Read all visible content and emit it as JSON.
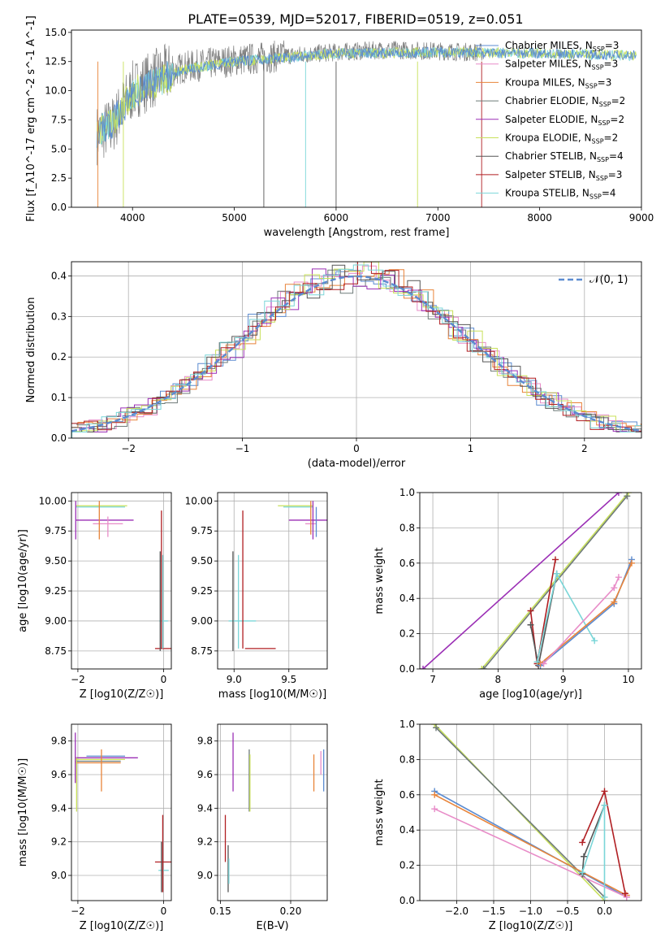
{
  "figure_title": "PLATE=0539, MJD=52017, FIBERID=0519, z=0.051",
  "palette": {
    "chabrier_miles": "#5b8bd0",
    "salpeter_miles": "#e88cc8",
    "kroupa_miles": "#e8843a",
    "chabrier_elodie": "#6e7a78",
    "salpeter_elodie": "#9b2fb5",
    "kroupa_elodie": "#c8e05a",
    "chabrier_stelib": "#555555",
    "salpeter_stelib": "#b01e22",
    "kroupa_stelib": "#7ad6d8",
    "gaussian": "#5b8bd0",
    "grid": "#b0b0b0"
  },
  "chart_data": [
    {
      "id": "spectrum",
      "type": "line",
      "title": "PLATE=0539, MJD=52017, FIBERID=0519, z=0.051",
      "xlabel": "wavelength [Angstrom, rest frame]",
      "ylabel": "Flux [f_λ10^-17 erg cm^-2 s^-1 A^-1]",
      "xlim": [
        3400,
        9000
      ],
      "ylim": [
        0,
        15.2
      ],
      "xticks": [
        "4000",
        "5000",
        "6000",
        "7000",
        "8000",
        "9000"
      ],
      "yticks": [
        "0.0",
        "2.5",
        "5.0",
        "7.5",
        "10.0",
        "12.5",
        "15.0"
      ],
      "grid": false,
      "legend_position": "right",
      "legend": [
        "Chabrier MILES, N_SSP=3",
        "Salpeter MILES, N_SSP=3",
        "Kroupa MILES, N_SSP=3",
        "Chabrier ELODIE, N_SSP=2",
        "Salpeter ELODIE, N_SSP=2",
        "Kroupa ELODIE, N_SSP=2",
        "Chabrier STELIB, N_SSP=4",
        "Salpeter STELIB, N_SSP=3",
        "Kroupa STELIB, N_SSP=4"
      ],
      "observed_trend": {
        "x": [
          3650,
          3800,
          3900,
          4000,
          4200,
          4500,
          5000,
          5500,
          6000,
          6500,
          7000,
          7400
        ],
        "y": [
          6.2,
          7.0,
          8.5,
          10.0,
          11.0,
          12.0,
          12.6,
          13.0,
          13.3,
          13.5,
          13.4,
          13.3
        ]
      },
      "model_trend": {
        "x": [
          3650,
          3800,
          4000,
          4500,
          5000,
          6000,
          7000,
          8000,
          9000
        ],
        "y": [
          6.5,
          7.2,
          9.8,
          11.8,
          12.5,
          13.2,
          13.3,
          13.2,
          13.0
        ]
      }
    },
    {
      "id": "residuals",
      "type": "line",
      "xlabel": "(data-model)/error",
      "ylabel": "Normed distribution",
      "xlim": [
        -2.5,
        2.5
      ],
      "ylim": [
        0,
        0.435
      ],
      "xticks": [
        "−2",
        "−1",
        "0",
        "1",
        "2"
      ],
      "yticks": [
        "0.0",
        "0.1",
        "0.2",
        "0.3",
        "0.4"
      ],
      "grid": true,
      "legend_position": "top-right",
      "legend": [
        "𝒩(0, 1)"
      ]
    },
    {
      "id": "age_vs_Z",
      "type": "scatter",
      "xlabel": "Z [log10(Z/Z☉)]",
      "ylabel": "age  [log10(age/yr)]",
      "xlim": [
        -2.15,
        0.18
      ],
      "ylim": [
        8.6,
        10.07
      ],
      "xticks": [
        "−2",
        "0"
      ],
      "yticks": [
        "8.75",
        "9.00",
        "9.25",
        "9.50",
        "9.75",
        "10.00"
      ],
      "grid": true,
      "bars": [
        {
          "x": [
            -2.05,
            -0.85
          ],
          "y": 9.96,
          "color": "kroupa_elodie"
        },
        {
          "x": [
            -2.05,
            -0.9
          ],
          "y": 9.95,
          "color": "kroupa_stelib"
        },
        {
          "x": [
            -2.05,
            -0.7
          ],
          "y": 9.84,
          "color": "salpeter_elodie"
        },
        {
          "x": [
            -1.65,
            -0.95
          ],
          "y": 9.81,
          "color": "salpeter_miles"
        },
        {
          "x": [
            -0.2,
            0.2
          ],
          "y": 8.77,
          "color": "salpeter_stelib"
        },
        {
          "x": [
            -0.1,
            0.1
          ],
          "y": 9.0,
          "color": "kroupa_stelib"
        }
      ],
      "vbars": [
        {
          "x": -2.05,
          "y": [
            9.68,
            10.0
          ],
          "color": "salpeter_elodie"
        },
        {
          "x": -1.5,
          "y": [
            9.68,
            10.0
          ],
          "color": "kroupa_miles"
        },
        {
          "x": -1.3,
          "y": [
            9.7,
            9.87
          ],
          "color": "salpeter_miles"
        },
        {
          "x": -0.05,
          "y": [
            8.77,
            9.92
          ],
          "color": "salpeter_stelib"
        },
        {
          "x": -0.08,
          "y": [
            8.75,
            9.58
          ],
          "color": "chabrier_stelib"
        },
        {
          "x": -0.02,
          "y": [
            8.77,
            9.55
          ],
          "color": "kroupa_stelib"
        }
      ]
    },
    {
      "id": "age_vs_mass",
      "type": "scatter",
      "xlabel": "mass [log10(M/M☉)]",
      "ylabel": "",
      "xlim": [
        8.85,
        9.85
      ],
      "ylim": [
        8.6,
        10.07
      ],
      "xticks": [
        "9.0",
        "9.5"
      ],
      "yticks": [
        "8.75",
        "9.00",
        "9.25",
        "9.50",
        "9.75",
        "10.00"
      ],
      "grid": true,
      "bars": [
        {
          "x": [
            9.4,
            9.72
          ],
          "y": 9.96,
          "color": "kroupa_elodie"
        },
        {
          "x": [
            9.45,
            9.72
          ],
          "y": 9.95,
          "color": "kroupa_stelib"
        },
        {
          "x": [
            9.5,
            9.85
          ],
          "y": 9.84,
          "color": "salpeter_elodie"
        },
        {
          "x": [
            9.65,
            9.75
          ],
          "y": 9.81,
          "color": "salpeter_miles"
        },
        {
          "x": [
            9.1,
            9.38
          ],
          "y": 8.77,
          "color": "salpeter_stelib"
        },
        {
          "x": [
            8.95,
            9.2
          ],
          "y": 9.0,
          "color": "kroupa_stelib"
        }
      ],
      "vbars": [
        {
          "x": 9.72,
          "y": [
            9.68,
            10.0
          ],
          "color": "salpeter_elodie"
        },
        {
          "x": 9.7,
          "y": [
            9.72,
            10.0
          ],
          "color": "kroupa_miles"
        },
        {
          "x": 9.75,
          "y": [
            9.7,
            9.95
          ],
          "color": "chabrier_miles"
        },
        {
          "x": 9.08,
          "y": [
            8.77,
            9.92
          ],
          "color": "salpeter_stelib"
        },
        {
          "x": 8.99,
          "y": [
            8.75,
            9.58
          ],
          "color": "chabrier_stelib"
        },
        {
          "x": 9.04,
          "y": [
            8.77,
            9.55
          ],
          "color": "kroupa_stelib"
        }
      ]
    },
    {
      "id": "mass_weight_vs_age",
      "type": "line",
      "xlabel": "age  [log10(age/yr)]",
      "ylabel": "mass weight",
      "xlim": [
        6.8,
        10.2
      ],
      "ylim": [
        0,
        1
      ],
      "xticks": [
        "7",
        "8",
        "9",
        "10"
      ],
      "yticks": [
        "0.0",
        "0.2",
        "0.4",
        "0.6",
        "0.8",
        "1.0"
      ],
      "grid": true,
      "series": [
        {
          "color": "salpeter_elodie",
          "x": [
            6.85,
            9.85
          ],
          "y": [
            0.0,
            1.0
          ]
        },
        {
          "color": "kroupa_elodie",
          "x": [
            7.75,
            10.0
          ],
          "y": [
            0.0,
            1.0
          ]
        },
        {
          "color": "chabrier_elodie",
          "x": [
            7.78,
            9.98
          ],
          "y": [
            0.0,
            0.98
          ]
        },
        {
          "color": "salpeter_stelib",
          "x": [
            8.5,
            8.6,
            8.88
          ],
          "y": [
            0.33,
            0.03,
            0.62
          ]
        },
        {
          "color": "chabrier_stelib",
          "x": [
            8.5,
            8.62,
            8.9
          ],
          "y": [
            0.25,
            0.02,
            0.54
          ]
        },
        {
          "color": "kroupa_stelib",
          "x": [
            8.6,
            8.9,
            9.48
          ],
          "y": [
            0.04,
            0.54,
            0.16
          ]
        },
        {
          "color": "chabrier_miles",
          "x": [
            8.65,
            9.78,
            10.05
          ],
          "y": [
            0.02,
            0.37,
            0.62
          ]
        },
        {
          "color": "kroupa_miles",
          "x": [
            8.65,
            9.78,
            10.05
          ],
          "y": [
            0.03,
            0.38,
            0.6
          ]
        },
        {
          "color": "salpeter_miles",
          "x": [
            8.7,
            9.78,
            9.85
          ],
          "y": [
            0.03,
            0.46,
            0.52
          ]
        }
      ]
    },
    {
      "id": "mass_vs_Z",
      "type": "scatter",
      "xlabel": "Z [log10(Z/Z☉)]",
      "ylabel": "mass [log10(M/M☉)]",
      "xlim": [
        -2.15,
        0.18
      ],
      "ylim": [
        8.85,
        9.9
      ],
      "xticks": [
        "−2",
        "0"
      ],
      "yticks": [
        "9.0",
        "9.2",
        "9.4",
        "9.6",
        "9.8"
      ],
      "grid": true,
      "bars": [
        {
          "x": [
            -2.05,
            -0.6
          ],
          "y": 9.7,
          "color": "salpeter_elodie"
        },
        {
          "x": [
            -2.05,
            -0.9
          ],
          "y": 9.69,
          "color": "kroupa_elodie"
        },
        {
          "x": [
            -2.05,
            -1.0
          ],
          "y": 9.68,
          "color": "chabrier_elodie"
        },
        {
          "x": [
            -2.05,
            -1.0
          ],
          "y": 9.67,
          "color": "kroupa_miles"
        },
        {
          "x": [
            -1.8,
            -0.9
          ],
          "y": 9.71,
          "color": "chabrier_miles"
        },
        {
          "x": [
            -0.2,
            0.2
          ],
          "y": 9.08,
          "color": "salpeter_stelib"
        },
        {
          "x": [
            -0.12,
            0.12
          ],
          "y": 9.03,
          "color": "kroupa_stelib"
        }
      ],
      "vbars": [
        {
          "x": -2.06,
          "y": [
            9.55,
            9.85
          ],
          "color": "salpeter_elodie"
        },
        {
          "x": -2.03,
          "y": [
            9.38,
            9.7
          ],
          "color": "kroupa_elodie"
        },
        {
          "x": -1.45,
          "y": [
            9.5,
            9.75
          ],
          "color": "kroupa_miles"
        },
        {
          "x": -0.05,
          "y": [
            8.9,
            9.2
          ],
          "color": "chabrier_stelib"
        },
        {
          "x": -0.02,
          "y": [
            8.9,
            9.36
          ],
          "color": "salpeter_stelib"
        }
      ]
    },
    {
      "id": "mass_vs_ebv",
      "type": "scatter",
      "xlabel": "E(B-V)",
      "ylabel": "",
      "xlim": [
        0.148,
        0.226
      ],
      "ylim": [
        8.85,
        9.9
      ],
      "xticks": [
        "0.15",
        "0.20"
      ],
      "yticks": [
        "9.0",
        "9.2",
        "9.4",
        "9.6",
        "9.8"
      ],
      "grid": true,
      "vbars": [
        {
          "x": 0.1535,
          "y": [
            9.08,
            9.36
          ],
          "color": "salpeter_stelib"
        },
        {
          "x": 0.1555,
          "y": [
            8.9,
            9.18
          ],
          "color": "chabrier_stelib"
        },
        {
          "x": 0.156,
          "y": [
            8.95,
            9.1
          ],
          "color": "kroupa_stelib"
        },
        {
          "x": 0.159,
          "y": [
            9.5,
            9.85
          ],
          "color": "salpeter_elodie"
        },
        {
          "x": 0.1705,
          "y": [
            9.38,
            9.75
          ],
          "color": "chabrier_elodie"
        },
        {
          "x": 0.171,
          "y": [
            9.38,
            9.72
          ],
          "color": "kroupa_elodie"
        },
        {
          "x": 0.2165,
          "y": [
            9.5,
            9.72
          ],
          "color": "kroupa_miles"
        },
        {
          "x": 0.2215,
          "y": [
            9.6,
            9.74
          ],
          "color": "salpeter_miles"
        },
        {
          "x": 0.2235,
          "y": [
            9.5,
            9.75
          ],
          "color": "chabrier_miles"
        }
      ]
    },
    {
      "id": "mass_weight_vs_Z",
      "type": "line",
      "xlabel": "Z [log10(Z/Z☉)]",
      "ylabel": "mass weight",
      "xlim": [
        -2.5,
        0.5
      ],
      "ylim": [
        0,
        1
      ],
      "xticks": [
        "−2.0",
        "−1.5",
        "−1.0",
        "−0.5",
        "0.0"
      ],
      "yticks": [
        "0.0",
        "0.2",
        "0.4",
        "0.6",
        "0.8",
        "1.0"
      ],
      "grid": true,
      "series": [
        {
          "color": "kroupa_elodie",
          "x": [
            -2.3,
            0.0
          ],
          "y": [
            1.0,
            0.0
          ]
        },
        {
          "color": "chabrier_elodie",
          "x": [
            -2.28,
            0.0
          ],
          "y": [
            0.98,
            0.02
          ]
        },
        {
          "color": "chabrier_miles",
          "x": [
            -2.3,
            0.3
          ],
          "y": [
            0.62,
            0.02
          ]
        },
        {
          "color": "kroupa_miles",
          "x": [
            -2.3,
            0.3
          ],
          "y": [
            0.6,
            0.03
          ]
        },
        {
          "color": "salpeter_miles",
          "x": [
            -2.3,
            0.3
          ],
          "y": [
            0.52,
            0.02
          ]
        },
        {
          "color": "salpeter_stelib",
          "x": [
            -0.3,
            0.0,
            0.28
          ],
          "y": [
            0.33,
            0.62,
            0.04
          ]
        },
        {
          "color": "chabrier_stelib",
          "x": [
            -0.3,
            -0.28,
            0.0
          ],
          "y": [
            0.15,
            0.25,
            0.54
          ]
        },
        {
          "color": "kroupa_stelib",
          "x": [
            -0.3,
            0.0,
            0.0
          ],
          "y": [
            0.16,
            0.54,
            0.02
          ]
        }
      ]
    }
  ]
}
